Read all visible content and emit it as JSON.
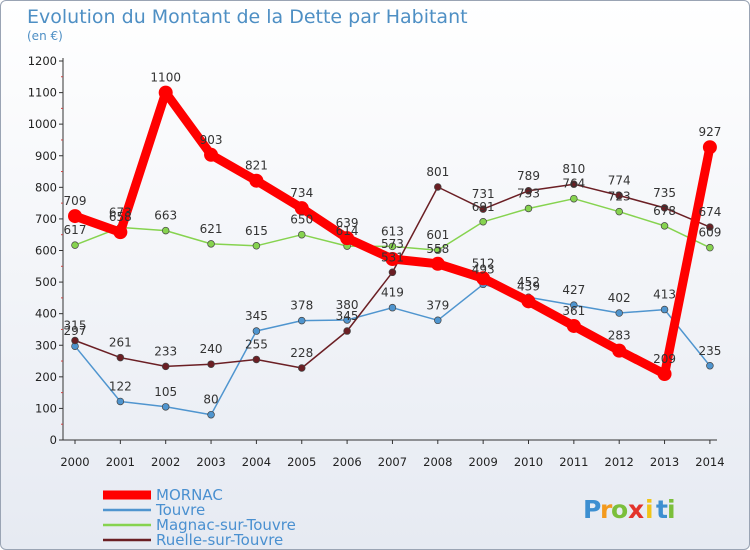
{
  "chart_data": {
    "type": "line",
    "title": "Evolution du Montant de la Dette par Habitant",
    "subtitle": "(en €)",
    "x": [
      "2000",
      "2001",
      "2002",
      "2003",
      "2004",
      "2005",
      "2006",
      "2007",
      "2008",
      "2009",
      "2010",
      "2011",
      "2012",
      "2013",
      "2014"
    ],
    "yticks": [
      0,
      100,
      200,
      300,
      400,
      500,
      600,
      700,
      800,
      900,
      1000,
      1100,
      1200
    ],
    "ylim": [
      0,
      1200
    ],
    "grid": false,
    "legend_position": "bottom-left",
    "series": [
      {
        "name": "MORNAC",
        "color": "#ff0000",
        "values": [
          709,
          658,
          1100,
          903,
          821,
          734,
          639,
          573,
          558,
          512,
          439,
          361,
          283,
          209,
          927
        ]
      },
      {
        "name": "Touvre",
        "color": "#4f95cf",
        "values": [
          297,
          122,
          105,
          80,
          345,
          378,
          380,
          419,
          379,
          493,
          452,
          427,
          402,
          413,
          235
        ]
      },
      {
        "name": "Magnac-sur-Touvre",
        "color": "#86d34f",
        "values": [
          617,
          673,
          663,
          621,
          615,
          650,
          614,
          613,
          601,
          691,
          733,
          764,
          723,
          678,
          609
        ]
      },
      {
        "name": "Ruelle-sur-Touvre",
        "color": "#6b1f24",
        "values": [
          315,
          261,
          233,
          240,
          255,
          228,
          345,
          531,
          801,
          731,
          789,
          810,
          774,
          735,
          674
        ]
      }
    ]
  },
  "logo": {
    "letters": [
      "P",
      "r",
      "o",
      "x",
      "i",
      "t",
      "i"
    ],
    "colors": [
      "#3d8fd1",
      "#f39a1e",
      "#7bbf3b",
      "#e3332b",
      "#f0c419",
      "#3d8fd1",
      "#7bbf3b"
    ]
  }
}
